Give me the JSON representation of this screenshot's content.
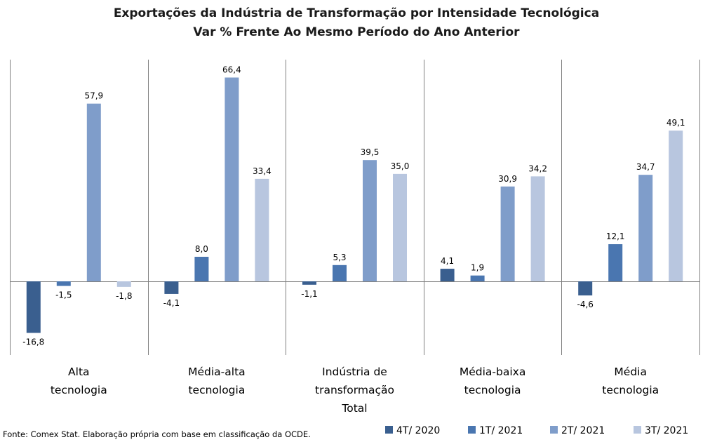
{
  "chart_data": {
    "type": "bar",
    "title": "Exportações da Indústria de Transformação por Intensidade Tecnológica",
    "subtitle": "Var % Frente Ao Mesmo Período do Ano Anterior",
    "categories": [
      [
        "Alta",
        "tecnologia"
      ],
      [
        "Média-alta",
        "tecnologia"
      ],
      [
        "Indústria de",
        "transformação",
        "Total"
      ],
      [
        "Média-baixa",
        "tecnologia"
      ],
      [
        "Média",
        "tecnologia"
      ]
    ],
    "series": [
      {
        "name": "4T/ 2020",
        "color": "#3a5f8f",
        "values": [
          -16.8,
          -4.1,
          -1.1,
          4.1,
          -4.6
        ],
        "labels": [
          "-16,8",
          "-4,1",
          "-1,1",
          "4,1",
          "-4,6"
        ]
      },
      {
        "name": "1T/ 2021",
        "color": "#4a76b0",
        "values": [
          -1.5,
          8.0,
          5.3,
          1.9,
          12.1
        ],
        "labels": [
          "-1,5",
          "8,0",
          "5,3",
          "1,9",
          "12,1"
        ]
      },
      {
        "name": "2T/ 2021",
        "color": "#7f9dca",
        "values": [
          57.9,
          66.4,
          39.5,
          30.9,
          34.7
        ],
        "labels": [
          "57,9",
          "66,4",
          "39,5",
          "30,9",
          "34,7"
        ]
      },
      {
        "name": "3T/ 2021",
        "color": "#b8c6df",
        "values": [
          -1.8,
          33.4,
          35.0,
          34.2,
          49.1
        ],
        "labels": [
          "-1,8",
          "33,4",
          "35,0",
          "34,2",
          "49,1"
        ]
      }
    ],
    "ylim": [
      -22,
      72
    ],
    "grid": false,
    "legend_position": "bottom-right",
    "source": "Fonte: Comex Stat. Elaboração própria com base em classificação da OCDE."
  }
}
